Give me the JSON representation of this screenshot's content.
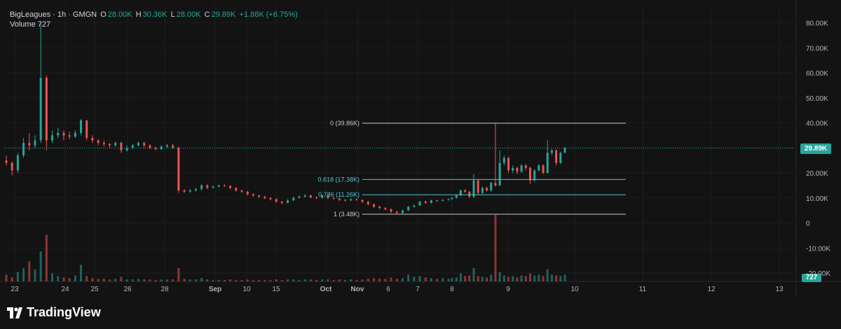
{
  "header": {
    "symbol": "BigLeagues · 1h · GMGN",
    "o_label": "O",
    "o_value": "28.00K",
    "h_label": "H",
    "h_value": "30.36K",
    "l_label": "L",
    "l_value": "28.00K",
    "c_label": "C",
    "c_value": "29.89K",
    "change": "+1.88K (+6.75%)",
    "volume_label": "Volume",
    "volume_value": "727"
  },
  "price_badge": "29.89K",
  "volume_badge": "727",
  "brand": "TradingView",
  "colors": {
    "up": "#26a69a",
    "down": "#ef5350",
    "fib_white": "#c8c8c8",
    "fib_cyan": "#4ec5d6",
    "background": "#131313"
  },
  "chart_data": {
    "type": "candlestick",
    "y_axis": {
      "ticks": [
        "80.00K",
        "70.00K",
        "60.00K",
        "50.00K",
        "40.00K",
        "30.00K",
        "20.00K",
        "10.00K",
        "0",
        "-10.00K",
        "-20.00K"
      ],
      "tick_values": [
        80000,
        70000,
        60000,
        50000,
        40000,
        30000,
        20000,
        10000,
        0,
        -10000,
        -20000
      ]
    },
    "x_axis": {
      "ticks": [
        "23",
        "24",
        "25",
        "26",
        "28",
        "Sep",
        "10",
        "15",
        "Oct",
        "Nov",
        "6",
        "7",
        "8",
        "9",
        "10",
        "11",
        "12",
        "13"
      ]
    },
    "fib_levels": [
      {
        "label": "0 (39.86K)",
        "value": 39860,
        "color": "white"
      },
      {
        "label": "0.618 (17.38K)",
        "value": 17380,
        "color": "cyan"
      },
      {
        "label": "0.786 (11.26K)",
        "value": 11260,
        "color": "cyan"
      },
      {
        "label": "1 (3.48K)",
        "value": 3480,
        "color": "white"
      }
    ],
    "last_close": 29890,
    "candles": [
      [
        25000,
        24000,
        27000,
        23000
      ],
      [
        24000,
        21000,
        24500,
        19000
      ],
      [
        21000,
        27000,
        28000,
        20000
      ],
      [
        27000,
        32000,
        34000,
        26000
      ],
      [
        32000,
        31000,
        36000,
        29000
      ],
      [
        31000,
        33000,
        35000,
        30000
      ],
      [
        33000,
        58000,
        80000,
        32000
      ],
      [
        58000,
        33000,
        59000,
        29000
      ],
      [
        33000,
        35000,
        37000,
        32000
      ],
      [
        35000,
        36000,
        38000,
        34000
      ],
      [
        36000,
        35000,
        37000,
        33000
      ],
      [
        35000,
        34500,
        36500,
        33500
      ],
      [
        34500,
        36000,
        37000,
        34000
      ],
      [
        36000,
        41000,
        41500,
        35000
      ],
      [
        41000,
        34000,
        41000,
        33000
      ],
      [
        34000,
        33000,
        35000,
        32000
      ],
      [
        33000,
        32000,
        33500,
        31000
      ],
      [
        32000,
        31500,
        33000,
        30500
      ],
      [
        31500,
        31000,
        32000,
        30000
      ],
      [
        31000,
        32000,
        32500,
        30500
      ],
      [
        32000,
        29000,
        32500,
        28000
      ],
      [
        29000,
        30000,
        31000,
        28500
      ],
      [
        30000,
        31000,
        31500,
        29500
      ],
      [
        31000,
        32000,
        32500,
        30500
      ],
      [
        32000,
        31000,
        32500,
        30000
      ],
      [
        31000,
        30000,
        31500,
        29500
      ],
      [
        30000,
        29500,
        30500,
        29000
      ],
      [
        29500,
        30500,
        31000,
        29000
      ],
      [
        30500,
        31000,
        31500,
        30000
      ],
      [
        31000,
        30000,
        31500,
        29500
      ],
      [
        30000,
        13000,
        30500,
        12000
      ],
      [
        13000,
        12500,
        13500,
        12000
      ],
      [
        12500,
        13000,
        13500,
        12000
      ],
      [
        13000,
        13500,
        14000,
        12500
      ],
      [
        13500,
        15000,
        15500,
        13000
      ],
      [
        15000,
        14000,
        15500,
        13500
      ],
      [
        14000,
        14500,
        15000,
        13800
      ],
      [
        14500,
        15000,
        15300,
        14200
      ],
      [
        15000,
        14800,
        15400,
        14500
      ],
      [
        14800,
        14000,
        15000,
        13500
      ],
      [
        14000,
        13000,
        14200,
        12500
      ],
      [
        13000,
        12500,
        13200,
        12000
      ],
      [
        12500,
        11500,
        12800,
        11000
      ],
      [
        11500,
        11000,
        11800,
        10500
      ],
      [
        11000,
        10500,
        11200,
        10000
      ],
      [
        10500,
        10000,
        10800,
        9500
      ],
      [
        10000,
        9500,
        10300,
        9000
      ],
      [
        9500,
        8500,
        9800,
        8000
      ],
      [
        8500,
        8000,
        8800,
        7500
      ],
      [
        8000,
        9000,
        9500,
        7800
      ],
      [
        9000,
        10000,
        10500,
        8800
      ],
      [
        10000,
        10500,
        11000,
        9800
      ],
      [
        10500,
        11000,
        11500,
        10200
      ],
      [
        11000,
        10200,
        11300,
        9800
      ],
      [
        10200,
        10000,
        10600,
        9600
      ],
      [
        10000,
        11000,
        11300,
        9800
      ],
      [
        11000,
        10000,
        11200,
        9500
      ],
      [
        10000,
        9800,
        10300,
        9300
      ],
      [
        9800,
        9200,
        10000,
        8800
      ],
      [
        9200,
        9000,
        9500,
        8600
      ],
      [
        9000,
        9500,
        9800,
        8700
      ],
      [
        9500,
        9200,
        9800,
        8900
      ],
      [
        9200,
        8500,
        9400,
        8000
      ],
      [
        8500,
        7500,
        8700,
        7000
      ],
      [
        7500,
        6500,
        7700,
        6000
      ],
      [
        6500,
        6000,
        6800,
        5500
      ],
      [
        6000,
        5500,
        6300,
        5000
      ],
      [
        5500,
        4500,
        5800,
        4000
      ],
      [
        4500,
        4000,
        4800,
        3600
      ],
      [
        4000,
        5000,
        5200,
        3700
      ],
      [
        5000,
        6500,
        6800,
        4800
      ],
      [
        6500,
        7000,
        7300,
        6200
      ],
      [
        7000,
        8500,
        8800,
        6800
      ],
      [
        8500,
        8000,
        9000,
        7600
      ],
      [
        8000,
        9000,
        9300,
        7800
      ],
      [
        9000,
        8800,
        9300,
        8500
      ],
      [
        8800,
        9200,
        9500,
        8600
      ],
      [
        9200,
        9500,
        9800,
        9000
      ],
      [
        9500,
        10000,
        10300,
        9300
      ],
      [
        10000,
        11000,
        11300,
        9800
      ],
      [
        11000,
        13000,
        13300,
        10800
      ],
      [
        13000,
        12500,
        13500,
        12000
      ],
      [
        12500,
        10500,
        12700,
        10000
      ],
      [
        10500,
        17000,
        19500,
        10000
      ],
      [
        17000,
        12000,
        17500,
        11000
      ],
      [
        12000,
        14000,
        14500,
        11500
      ],
      [
        14000,
        13000,
        14500,
        12500
      ],
      [
        13000,
        16000,
        16500,
        12500
      ],
      [
        16000,
        15000,
        39860,
        14500
      ],
      [
        15000,
        24000,
        29000,
        14800
      ],
      [
        24000,
        26000,
        27000,
        23000
      ],
      [
        26000,
        21000,
        26500,
        20000
      ],
      [
        21000,
        22000,
        23000,
        20000
      ],
      [
        22000,
        20500,
        22500,
        19500
      ],
      [
        20500,
        23000,
        23500,
        20000
      ],
      [
        23000,
        22000,
        23500,
        21000
      ],
      [
        22000,
        17000,
        22500,
        15500
      ],
      [
        17000,
        21000,
        21500,
        16500
      ],
      [
        21000,
        23000,
        23500,
        20500
      ],
      [
        23000,
        20000,
        23500,
        19500
      ],
      [
        20000,
        28000,
        33000,
        19800
      ],
      [
        28000,
        29000,
        29500,
        27000
      ],
      [
        29000,
        24000,
        29500,
        23000
      ],
      [
        24000,
        28000,
        28500,
        23500
      ],
      [
        28000,
        29890,
        30360,
        28000
      ]
    ],
    "volumes": [
      10,
      6,
      14,
      20,
      30,
      18,
      45,
      70,
      12,
      8,
      6,
      5,
      9,
      25,
      8,
      5,
      4,
      4,
      3,
      4,
      7,
      3,
      3,
      4,
      3,
      3,
      2,
      3,
      3,
      3,
      20,
      4,
      3,
      3,
      5,
      3,
      2,
      2,
      2,
      3,
      2,
      2,
      3,
      2,
      2,
      2,
      2,
      3,
      2,
      3,
      3,
      2,
      3,
      3,
      2,
      3,
      3,
      2,
      3,
      2,
      3,
      2,
      3,
      4,
      5,
      4,
      4,
      6,
      4,
      5,
      10,
      7,
      8,
      6,
      5,
      4,
      5,
      4,
      5,
      6,
      12,
      8,
      9,
      20,
      8,
      7,
      6,
      10,
      100,
      14,
      9,
      7,
      8,
      6,
      9,
      8,
      12,
      9,
      10,
      8,
      18,
      10,
      9,
      8,
      10
    ]
  }
}
